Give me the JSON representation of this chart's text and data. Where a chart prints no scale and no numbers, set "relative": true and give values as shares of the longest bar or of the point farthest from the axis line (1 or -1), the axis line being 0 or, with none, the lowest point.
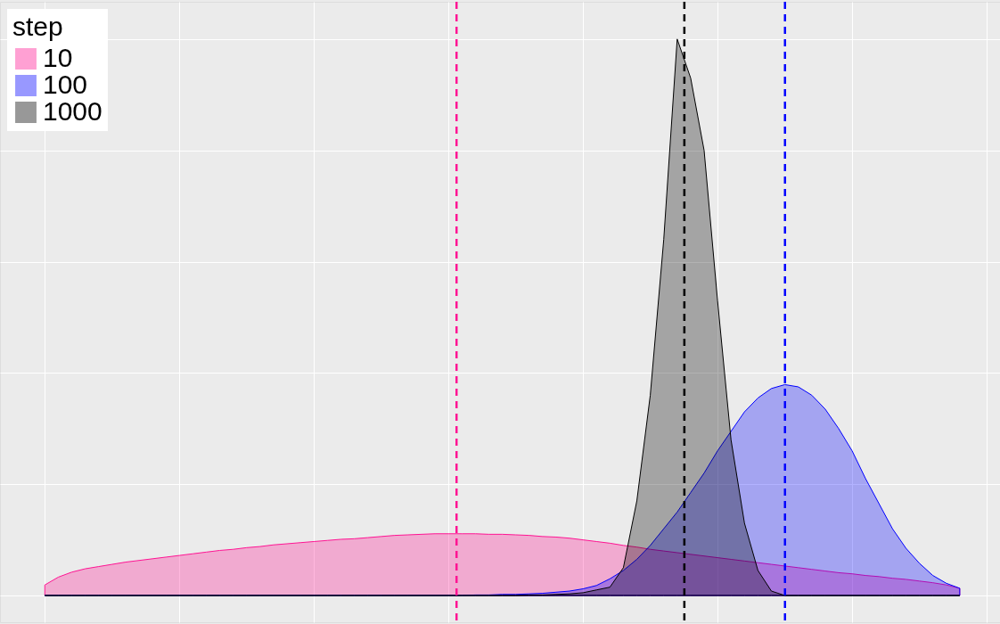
{
  "chart_data": {
    "type": "area",
    "relative": true,
    "legend_title": "step",
    "legend": "top left",
    "grid": true,
    "tick_labels": false,
    "categories": [
      null,
      null,
      null,
      null,
      null,
      null,
      null,
      null,
      null,
      null,
      null,
      null,
      null,
      null,
      null,
      null,
      null,
      null,
      null,
      null,
      null,
      null,
      null,
      null,
      null,
      null,
      null,
      null,
      null,
      null,
      null,
      null,
      null,
      null,
      null,
      null,
      null,
      null,
      null,
      null,
      null,
      null,
      null,
      null,
      null,
      null,
      null,
      null,
      null,
      null,
      null,
      null,
      null,
      null,
      null,
      null,
      null,
      null,
      null,
      null,
      null,
      null,
      null,
      null,
      null,
      null,
      null,
      null,
      null
    ],
    "series": [
      {
        "name": "10",
        "color": "#ff1493",
        "values": [
          0.019,
          0.033,
          0.042,
          0.048,
          0.052,
          0.056,
          0.06,
          0.063,
          0.066,
          0.069,
          0.072,
          0.075,
          0.078,
          0.081,
          0.083,
          0.086,
          0.088,
          0.091,
          0.093,
          0.095,
          0.097,
          0.099,
          0.101,
          0.102,
          0.104,
          0.106,
          0.108,
          0.109,
          0.11,
          0.111,
          0.111,
          0.111,
          0.111,
          0.11,
          0.11,
          0.109,
          0.108,
          0.106,
          0.105,
          0.103,
          0.1,
          0.097,
          0.094,
          0.09,
          0.087,
          0.083,
          0.08,
          0.077,
          0.074,
          0.071,
          0.068,
          0.065,
          0.062,
          0.059,
          0.056,
          0.053,
          0.05,
          0.047,
          0.044,
          0.041,
          0.039,
          0.036,
          0.034,
          0.031,
          0.029,
          0.026,
          0.023,
          0.019,
          0.013
        ]
      },
      {
        "name": "100",
        "color": "#0000ff",
        "values": [
          0,
          0,
          0,
          0,
          0,
          0,
          0,
          0,
          0,
          0,
          0,
          0,
          0,
          0,
          0,
          0,
          0,
          0,
          0,
          0,
          0,
          0,
          0,
          0,
          0,
          0,
          0,
          0,
          0,
          0,
          0,
          0,
          0.001,
          0.001,
          0.002,
          0.002,
          0.003,
          0.004,
          0.006,
          0.008,
          0.012,
          0.018,
          0.03,
          0.045,
          0.065,
          0.09,
          0.12,
          0.15,
          0.185,
          0.22,
          0.26,
          0.295,
          0.33,
          0.355,
          0.372,
          0.379,
          0.375,
          0.36,
          0.335,
          0.3,
          0.26,
          0.21,
          0.165,
          0.12,
          0.085,
          0.058,
          0.036,
          0.022,
          0.013
        ]
      },
      {
        "name": "1000",
        "color": "#000000",
        "values": [
          0,
          0,
          0,
          0,
          0,
          0,
          0,
          0,
          0,
          0,
          0,
          0,
          0,
          0,
          0,
          0,
          0,
          0,
          0,
          0,
          0,
          0,
          0,
          0,
          0,
          0,
          0,
          0,
          0,
          0,
          0,
          0,
          0,
          0,
          0,
          0,
          0.001,
          0.001,
          0.002,
          0.003,
          0.005,
          0.01,
          0.015,
          0.05,
          0.17,
          0.36,
          0.64,
          1,
          0.93,
          0.8,
          0.53,
          0.28,
          0.13,
          0.045,
          0.008,
          0,
          0,
          0,
          0,
          0,
          0,
          0,
          0,
          0,
          0,
          0,
          0,
          0,
          0
        ]
      }
    ]
  }
}
